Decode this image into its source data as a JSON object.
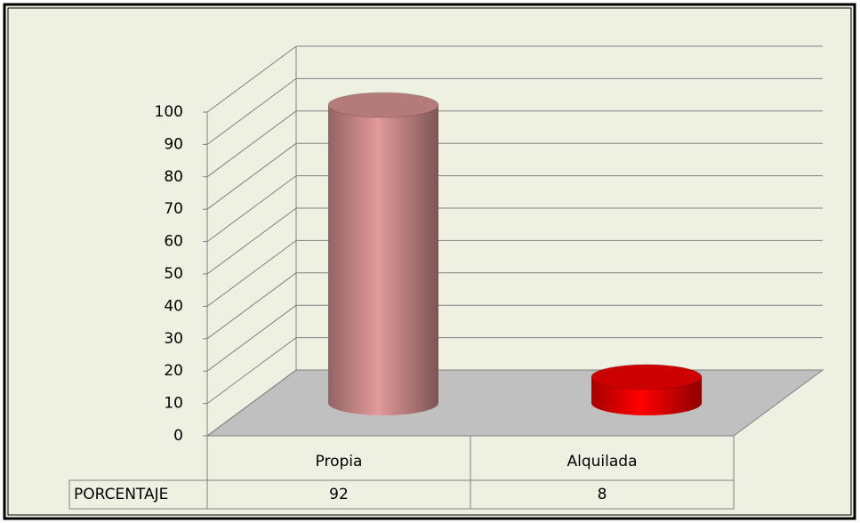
{
  "chart_data": {
    "type": "bar3d",
    "categories": [
      "Propia",
      "Alquilada"
    ],
    "series": [
      {
        "name": "PORCENTAJE",
        "values": [
          92,
          8
        ]
      }
    ],
    "colors": [
      "#e29a9a",
      "#ff0000"
    ],
    "ylim": [
      0,
      100
    ],
    "yticks": [
      0,
      10,
      20,
      30,
      40,
      50,
      60,
      70,
      80,
      90,
      100
    ],
    "grid": true
  }
}
